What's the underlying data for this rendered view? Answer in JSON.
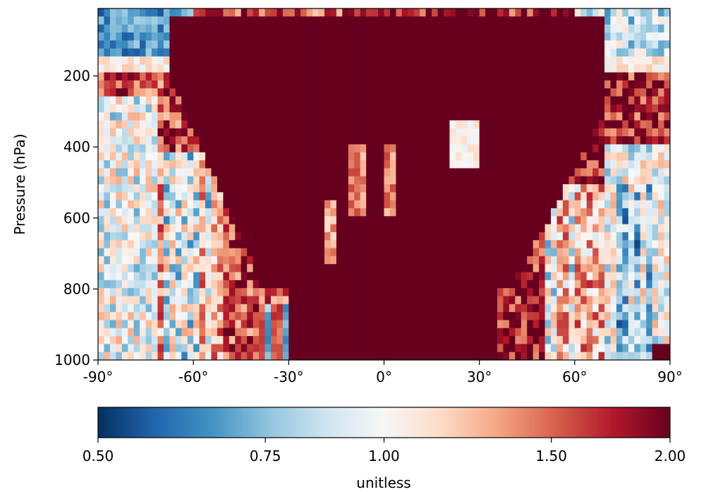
{
  "chart_data": {
    "type": "heatmap",
    "title": "",
    "xlabel": "",
    "ylabel": "Pressure (hPa)",
    "xlim": [
      -90,
      90
    ],
    "ylim": [
      1000,
      10
    ],
    "x_ticks": [
      -90,
      -60,
      -30,
      0,
      30,
      60,
      90
    ],
    "x_tick_labels": [
      "-90°",
      "-60°",
      "-30°",
      "0°",
      "30°",
      "60°",
      "90°"
    ],
    "y_ticks": [
      200,
      400,
      600,
      800,
      1000
    ],
    "y_tick_labels": [
      "200",
      "400",
      "600",
      "800",
      "1000"
    ],
    "colorbar": {
      "colormap": "RdBu_r",
      "scale": "log",
      "min": 0.5,
      "max": 2.0,
      "ticks": [
        0.5,
        0.75,
        1.0,
        1.5,
        2.0
      ],
      "tick_labels": [
        "0.50",
        "0.75",
        "1.00",
        "1.50",
        "2.00"
      ],
      "label": "unitless",
      "colors": [
        "#053061",
        "#2166ac",
        "#4393c3",
        "#92c5de",
        "#d1e5f0",
        "#f7f7f7",
        "#fddbc7",
        "#f4a582",
        "#d6604d",
        "#b2182b",
        "#67001f"
      ]
    },
    "grid": false
  }
}
